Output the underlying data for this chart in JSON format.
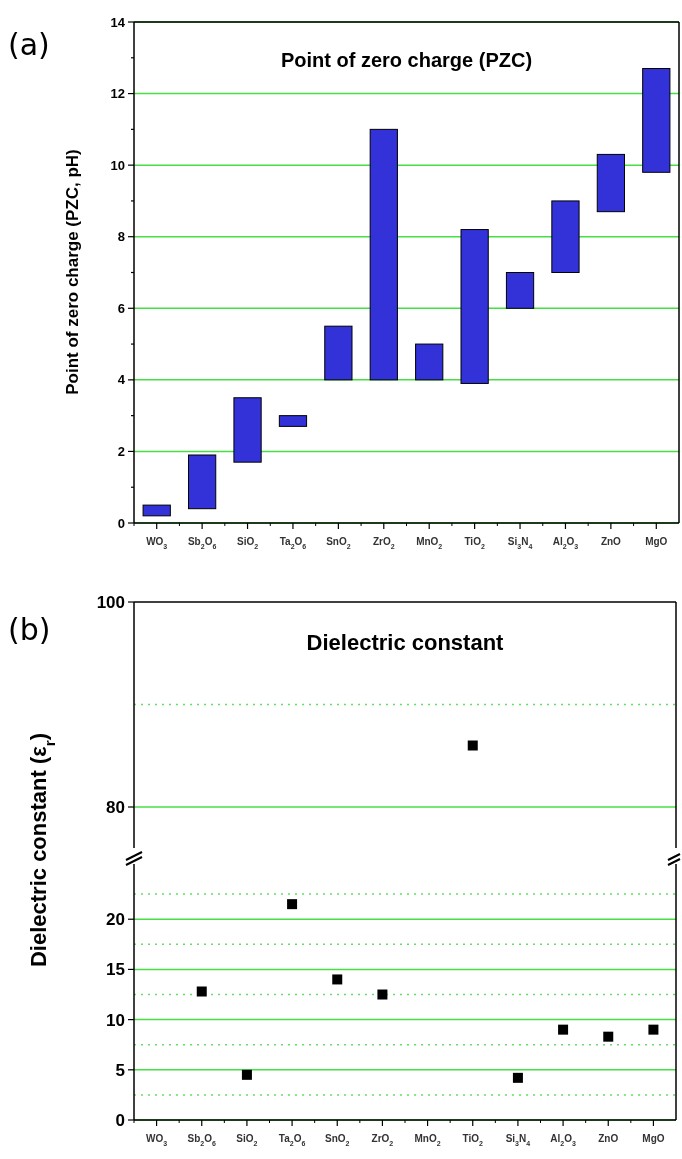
{
  "chart_data": [
    {
      "type": "bar",
      "title": "Point of zero charge (PZC)",
      "ylabel": "Point of zero charge (PZC, pH)",
      "annotations": [
        "(a)"
      ],
      "categories": [
        "WO$_{3}$",
        "Sb$_{2}$O$_{6}$",
        "SiO$_{2}$",
        "Ta$_{2}$O$_{6}$",
        "SnO$_{2}$",
        "ZrO$_{2}$",
        "MnO$_{2}$",
        "TiO$_{2}$",
        "Si$_{3}$N$_{4}$",
        "Al$_{2}$O$_{3}$",
        "ZnO",
        "MgO"
      ],
      "base": [
        0.2,
        0.4,
        1.7,
        2.7,
        4,
        4,
        4,
        3.9,
        6,
        7,
        8.7,
        9.8
      ],
      "values": [
        0.3,
        1.5,
        1.8,
        0.3,
        1.5,
        7,
        1,
        4.3,
        1,
        2,
        1.6,
        2.9
      ],
      "color": "#3232d8",
      "ylim": [
        0,
        14
      ],
      "yticks": [
        0,
        {
          "value": 1,
          "label": null
        },
        2,
        {
          "value": 3,
          "label": null
        },
        4,
        {
          "value": 5,
          "label": null
        },
        6,
        {
          "value": 7,
          "label": null
        },
        8,
        {
          "value": 9,
          "label": null
        },
        10,
        {
          "value": 11,
          "label": null
        },
        12,
        {
          "value": 13,
          "label": null
        },
        14
      ],
      "grid": "y"
    },
    {
      "type": "scatter",
      "title": "Dielectric constant",
      "annotations": [
        "(b)"
      ],
      "categories": [
        null,
        null,
        null,
        null,
        null,
        null,
        null,
        null,
        null,
        null,
        null,
        null
      ],
      "values": [
        null,
        null,
        null,
        null,
        null,
        null,
        null,
        86,
        null,
        null,
        null,
        null
      ],
      "color": "#000000",
      "marker": "square",
      "ylim": [
        76,
        100
      ],
      "yticks": [
        80,
        100
      ],
      "tick_labels": "y",
      "ref_lines": [
        {
          "axis": "y",
          "value": 80,
          "color": "#44e044",
          "line_style": "solid"
        },
        {
          "axis": "y",
          "value": 90,
          "color": "#66dd66",
          "line_style": "dotted"
        }
      ]
    },
    {
      "type": "scatter",
      "ylabel": "Dielectric constant (ε$_{r}$)",
      "categories": [
        "WO$_{3}$",
        "Sb$_{2}$O$_{6}$",
        "SiO$_{2}$",
        "Ta$_{2}$O$_{6}$",
        "SnO$_{2}$",
        "ZrO$_{2}$",
        "MnO$_{2}$",
        "TiO$_{2}$",
        "Si$_{3}$N$_{4}$",
        "Al$_{2}$O$_{3}$",
        "ZnO",
        "MgO"
      ],
      "values": [
        null,
        12.8,
        4.5,
        21.5,
        14,
        12.5,
        null,
        null,
        4.2,
        9,
        8.3,
        9
      ],
      "color": "#000000",
      "marker": "square",
      "ylim": [
        0,
        25.5
      ],
      "yticks": [
        0,
        5,
        10,
        15,
        20
      ],
      "grid": "y",
      "ref_lines": [
        {
          "axis": "y",
          "value": 2.5,
          "color": "#66dd66",
          "line_style": "dotted"
        },
        {
          "axis": "y",
          "value": 7.5,
          "color": "#66dd66",
          "line_style": "dotted"
        },
        {
          "axis": "y",
          "value": 12.5,
          "color": "#66dd66",
          "line_style": "dotted"
        },
        {
          "axis": "y",
          "value": 17.5,
          "color": "#66dd66",
          "line_style": "dotted"
        },
        {
          "axis": "y",
          "value": 22.5,
          "color": "#66dd66",
          "line_style": "dotted"
        }
      ]
    }
  ]
}
